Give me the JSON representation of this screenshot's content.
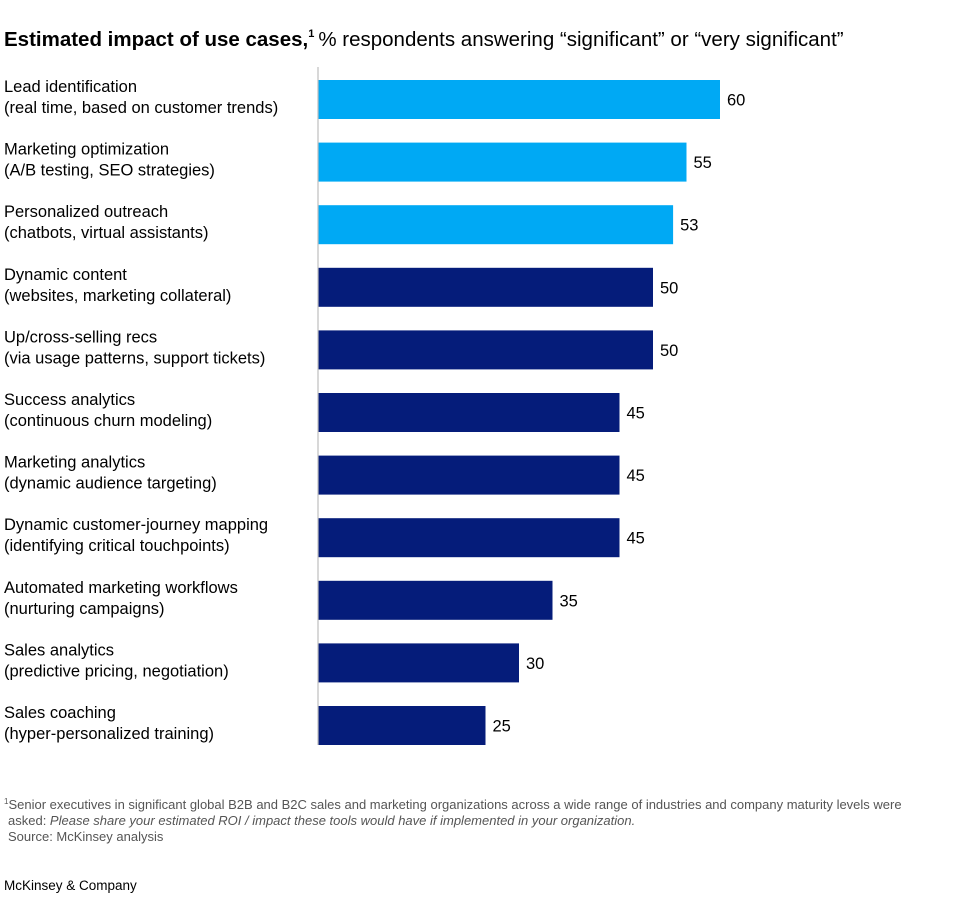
{
  "title": {
    "bold": "Estimated impact of use cases,",
    "footnote_mark": "1",
    "subtitle": "% respondents answering “significant” or “very significant”"
  },
  "chart_data": {
    "type": "bar",
    "orientation": "horizontal",
    "categories": [
      [
        "Lead identification",
        "(real time, based on customer trends)"
      ],
      [
        "Marketing optimization",
        "(A/B testing, SEO strategies)"
      ],
      [
        "Personalized outreach",
        "(chatbots, virtual assistants)"
      ],
      [
        "Dynamic content",
        "(websites, marketing collateral)"
      ],
      [
        "Up/cross-selling recs",
        "(via usage patterns, support tickets)"
      ],
      [
        "Success analytics",
        "(continuous churn modeling)"
      ],
      [
        "Marketing analytics",
        "(dynamic audience targeting)"
      ],
      [
        "Dynamic customer-journey mapping",
        "(identifying critical touchpoints)"
      ],
      [
        "Automated marketing workflows",
        "(nurturing campaigns)"
      ],
      [
        "Sales analytics",
        "(predictive pricing, negotiation)"
      ],
      [
        "Sales coaching",
        "(hyper-personalized training)"
      ]
    ],
    "values": [
      60,
      55,
      53,
      50,
      50,
      45,
      45,
      45,
      35,
      30,
      25
    ],
    "highlight_count": 3,
    "colors": {
      "highlight": "#00a9f4",
      "default": "#051c7a",
      "axis": "#bdbdbd"
    },
    "xlim": [
      0,
      60
    ]
  },
  "footnote": {
    "mark": "1",
    "line1": "Senior executives in significant global B2B and B2C sales and marketing organizations across a wide range of industries and company maturity levels were",
    "line2_prefix": "asked: ",
    "line2_italic": "Please share your estimated ROI / impact these tools would have if implemented in your organization.",
    "source": "Source: McKinsey analysis"
  },
  "brand": "McKinsey & Company"
}
